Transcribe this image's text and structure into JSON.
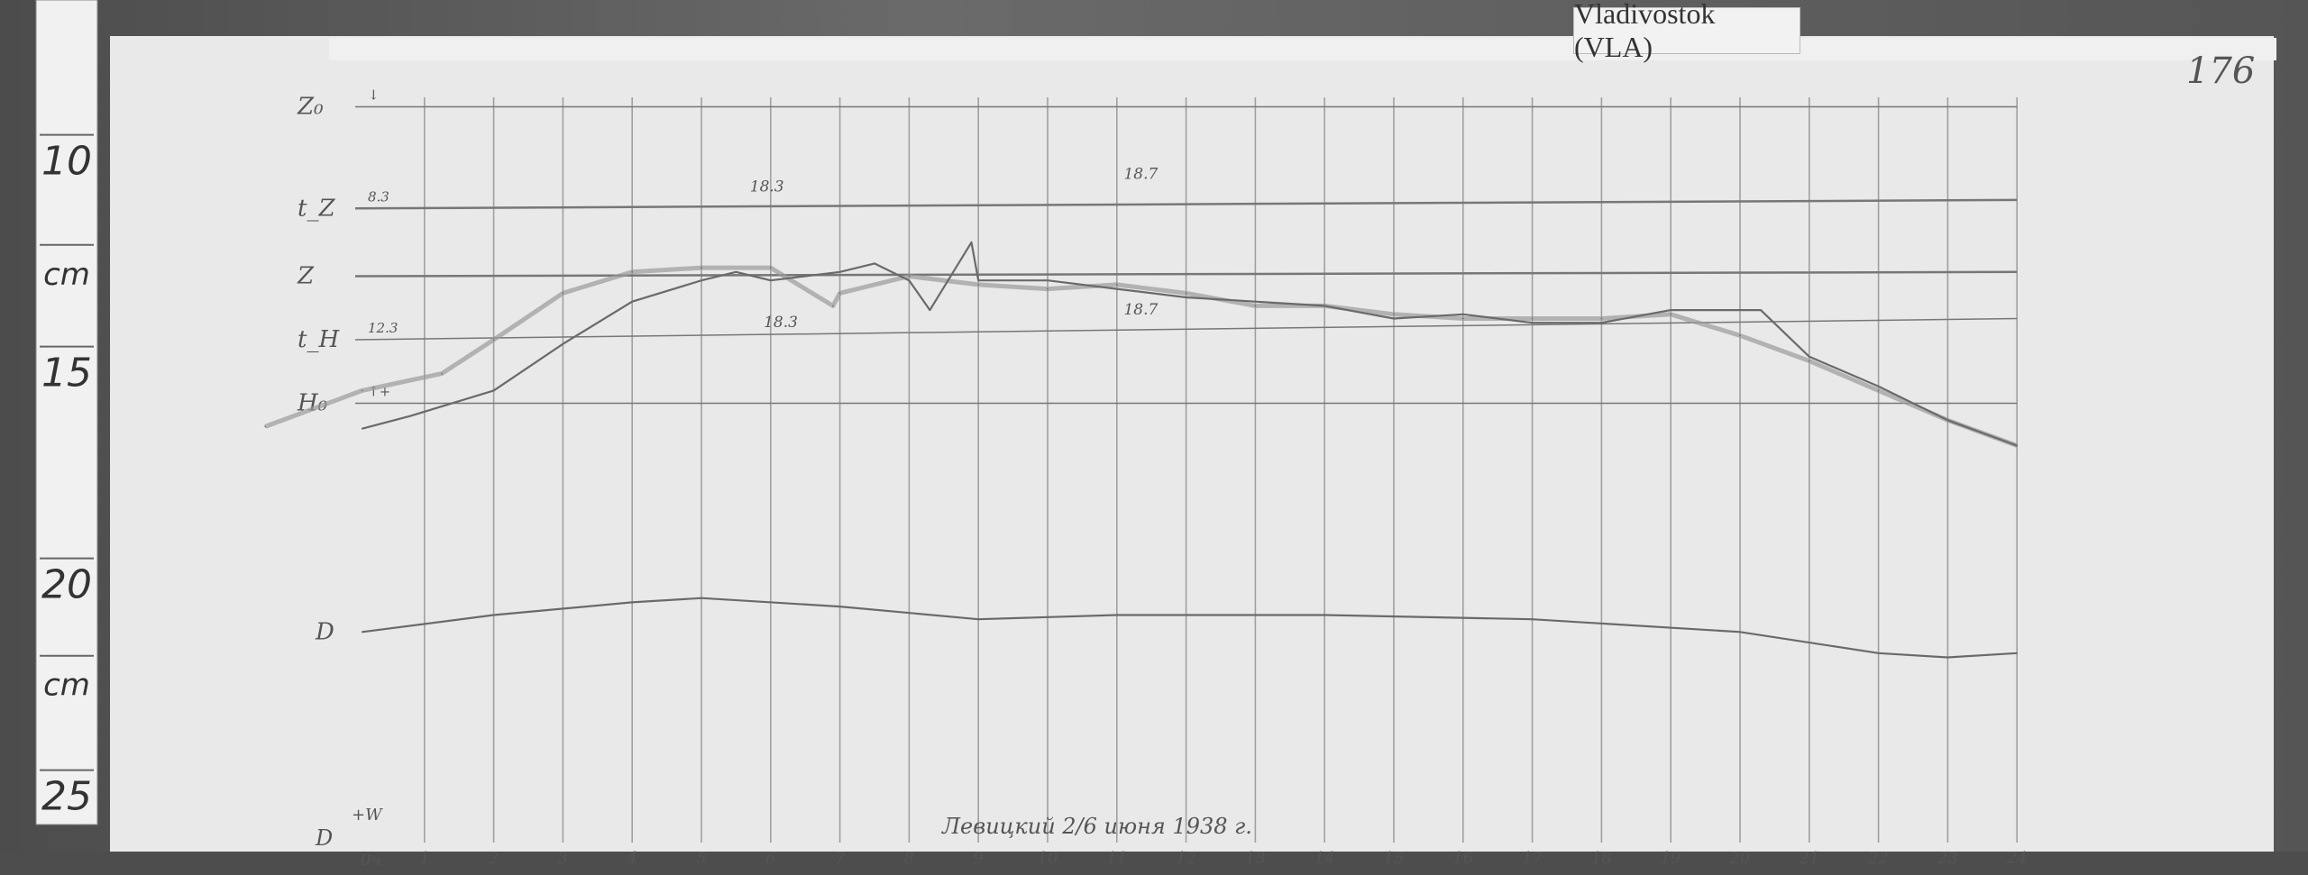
{
  "station_label": "Vladivostok (VLA)",
  "sheet_number": "176",
  "ruler": {
    "labels": [
      {
        "text": "10",
        "cm": 10
      },
      {
        "text": "cm",
        "cm": 12.6
      },
      {
        "text": "15",
        "cm": 15
      },
      {
        "text": "20",
        "cm": 20
      },
      {
        "text": "cm",
        "cm": 22.3
      },
      {
        "text": "25",
        "cm": 25
      }
    ]
  },
  "footer": {
    "d_label": "D",
    "w_label": "+W",
    "zero_label": "0ч",
    "signature": "Левицкий 2/6 июня 1938 г."
  },
  "colors": {
    "paper": "#e9e9e9",
    "grid": "#9a9a9a",
    "trace": "#6a6a6a",
    "frame": "#555555"
  },
  "chart_data": {
    "type": "line",
    "title": "",
    "xlabel": "",
    "ylabel": "",
    "x_unit": "hour",
    "y_unit": "cm (ruler)",
    "xlim": [
      0,
      24
    ],
    "ylim": [
      8,
      26.5
    ],
    "grid": true,
    "x_ticks": [
      "1",
      "2",
      "3",
      "4",
      "5",
      "6",
      "7",
      "8",
      "9",
      "10",
      "11",
      "12",
      "13",
      "14",
      "15",
      "16",
      "17",
      "18",
      "19",
      "20",
      "21",
      "22",
      "23",
      "24"
    ],
    "baselines": [
      {
        "label": "Z₀",
        "sub": "↓",
        "y": [
          8.7,
          8.7
        ]
      },
      {
        "label": "t_Z",
        "sub": "8.3",
        "y": [
          11.1,
          10.9
        ]
      },
      {
        "label": "Z",
        "sub": "",
        "y": [
          12.7,
          12.6
        ]
      },
      {
        "label": "t_H",
        "sub": "12.3",
        "y": [
          14.2,
          13.7
        ]
      },
      {
        "label": "H₀",
        "sub": "↑+",
        "y": [
          15.7,
          15.7
        ]
      }
    ],
    "annotations": [
      {
        "text": "18.3",
        "x": 5.7,
        "y": 10.7
      },
      {
        "text": "18.7",
        "x": 11.1,
        "y": 10.4
      },
      {
        "text": "18.3",
        "x": 5.9,
        "y": 13.9
      },
      {
        "text": "18.7",
        "x": 11.1,
        "y": 13.6
      }
    ],
    "series": [
      {
        "label": "",
        "style": "faint",
        "x": [
          -1.3,
          0.1,
          1.25,
          2,
          3,
          4,
          5,
          6,
          6.9,
          7,
          8,
          9,
          10,
          11,
          12,
          13,
          14,
          15,
          16,
          17,
          18,
          19,
          20,
          21,
          22,
          23,
          24
        ],
        "y": [
          16.25,
          15.4,
          15.0,
          14.2,
          13.1,
          12.6,
          12.5,
          12.5,
          13.4,
          13.1,
          12.7,
          12.9,
          13.0,
          12.9,
          13.1,
          13.4,
          13.4,
          13.6,
          13.7,
          13.7,
          13.7,
          13.6,
          14.1,
          14.7,
          15.4,
          16.1,
          16.7
        ]
      },
      {
        "label": "",
        "style": "solid",
        "x": [
          0.1,
          0.8,
          2,
          3,
          4,
          5,
          5.5,
          6,
          7,
          7.5,
          8,
          8.3,
          8.9,
          9,
          10,
          11,
          12,
          13,
          14,
          15,
          16,
          17,
          18,
          19,
          20,
          20.3,
          21,
          22,
          23,
          24
        ],
        "y": [
          16.3,
          16.0,
          15.4,
          14.3,
          13.3,
          12.8,
          12.6,
          12.8,
          12.6,
          12.4,
          12.8,
          13.5,
          11.9,
          12.8,
          12.8,
          13.0,
          13.2,
          13.3,
          13.4,
          13.7,
          13.6,
          13.8,
          13.8,
          13.5,
          13.5,
          13.5,
          14.6,
          15.3,
          16.1,
          16.7
        ]
      },
      {
        "label": "D",
        "style": "solid",
        "x": [
          0.1,
          2,
          4,
          5,
          7,
          9,
          11,
          14,
          17,
          20,
          22,
          23,
          24
        ],
        "y": [
          21.1,
          20.7,
          20.4,
          20.3,
          20.5,
          20.8,
          20.7,
          20.7,
          20.8,
          21.1,
          21.6,
          21.7,
          21.6
        ]
      }
    ]
  }
}
